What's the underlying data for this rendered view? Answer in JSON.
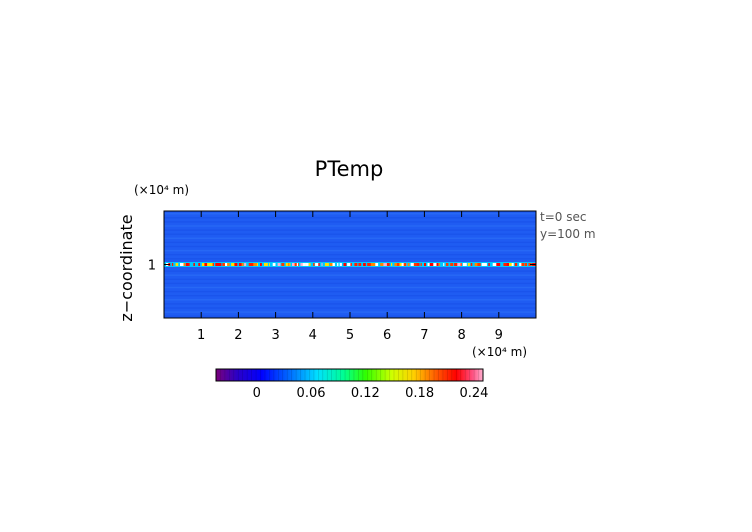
{
  "chart_data": {
    "type": "heatmap",
    "title": "PTemp",
    "ylabel": "z−coordinate",
    "x_unit": "(×10⁴ m)",
    "y_unit": "(×10⁴ m)",
    "x_ticks": [
      "1",
      "2",
      "3",
      "4",
      "5",
      "6",
      "7",
      "8",
      "9"
    ],
    "x_tick_values": [
      1,
      2,
      3,
      4,
      5,
      6,
      7,
      8,
      9
    ],
    "y_ticks": [
      "1"
    ],
    "y_tick_values": [
      1
    ],
    "xlim": [
      0,
      10
    ],
    "ylim": [
      0.72,
      1.28
    ],
    "annotations": [
      "t=0 sec",
      "y=100 m"
    ],
    "colorbar": {
      "ticks": [
        "0",
        "0.06",
        "0.12",
        "0.18",
        "0.24"
      ],
      "tick_values": [
        0,
        0.06,
        0.12,
        0.18,
        0.24
      ],
      "range": [
        -0.045,
        0.25
      ]
    },
    "field": {
      "background_value": 0.0,
      "perturbation_band_z": 1.0,
      "perturbation_max": 0.24
    }
  }
}
